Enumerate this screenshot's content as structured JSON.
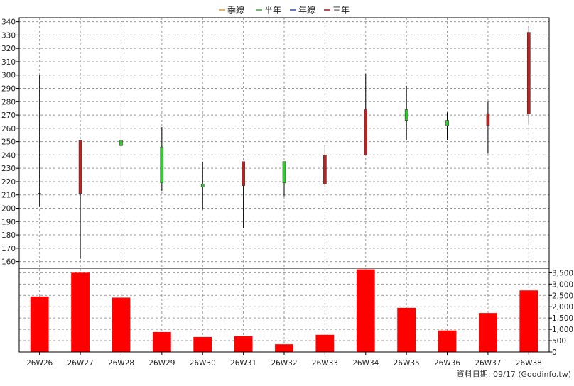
{
  "chart_data": {
    "type": "candlestick",
    "legend": [
      {
        "label": "季線",
        "color": "#ff8c00"
      },
      {
        "label": "半年",
        "color": "#22bb22"
      },
      {
        "label": "年線",
        "color": "#1f4fd0"
      },
      {
        "label": "三年",
        "color": "#d40000"
      }
    ],
    "legend_position": "top-center",
    "categories": [
      "26W26",
      "26W27",
      "26W28",
      "26W29",
      "26W30",
      "26W31",
      "26W32",
      "26W33",
      "26W34",
      "26W35",
      "26W36",
      "26W37",
      "26W38"
    ],
    "price": {
      "ylim": [
        155,
        343
      ],
      "ticks": [
        160,
        170,
        180,
        190,
        200,
        210,
        220,
        230,
        240,
        250,
        260,
        270,
        280,
        290,
        300,
        310,
        320,
        330,
        340
      ],
      "ohlc": [
        {
          "open": 211,
          "high": 300,
          "low": 201,
          "close": 211
        },
        {
          "open": 211,
          "high": 251,
          "low": 162,
          "close": 251
        },
        {
          "open": 251,
          "high": 279,
          "low": 220,
          "close": 247
        },
        {
          "open": 246,
          "high": 261,
          "low": 213,
          "close": 219
        },
        {
          "open": 218,
          "high": 235,
          "low": 199,
          "close": 216
        },
        {
          "open": 217,
          "high": 235,
          "low": 185,
          "close": 235
        },
        {
          "open": 235,
          "high": 235,
          "low": 209,
          "close": 219
        },
        {
          "open": 218,
          "high": 248,
          "low": 216,
          "close": 240
        },
        {
          "open": 240,
          "high": 301,
          "low": 240,
          "close": 274
        },
        {
          "open": 274,
          "high": 292,
          "low": 251,
          "close": 266
        },
        {
          "open": 266,
          "high": 272,
          "low": 251,
          "close": 262
        },
        {
          "open": 262,
          "high": 280,
          "low": 241,
          "close": 271
        },
        {
          "open": 271,
          "high": 337,
          "low": 263,
          "close": 332
        }
      ],
      "up_color": "#c0201c",
      "down_color": "#2ad12a"
    },
    "volume": {
      "ylim": [
        0,
        3700
      ],
      "ticks": [
        0,
        500,
        1000,
        1500,
        2000,
        2500,
        3000,
        3500
      ],
      "tick_labels": [
        "0",
        "500",
        "1,000",
        "1,500",
        "2,000",
        "2,500",
        "3,000",
        "3,500"
      ],
      "values": [
        2450,
        3500,
        2400,
        880,
        660,
        700,
        340,
        760,
        3650,
        1950,
        950,
        1720,
        2720
      ],
      "color": "#ff0000"
    },
    "grid": true
  },
  "footnote": "資料日期: 09/17  (Goodinfo.tw)"
}
